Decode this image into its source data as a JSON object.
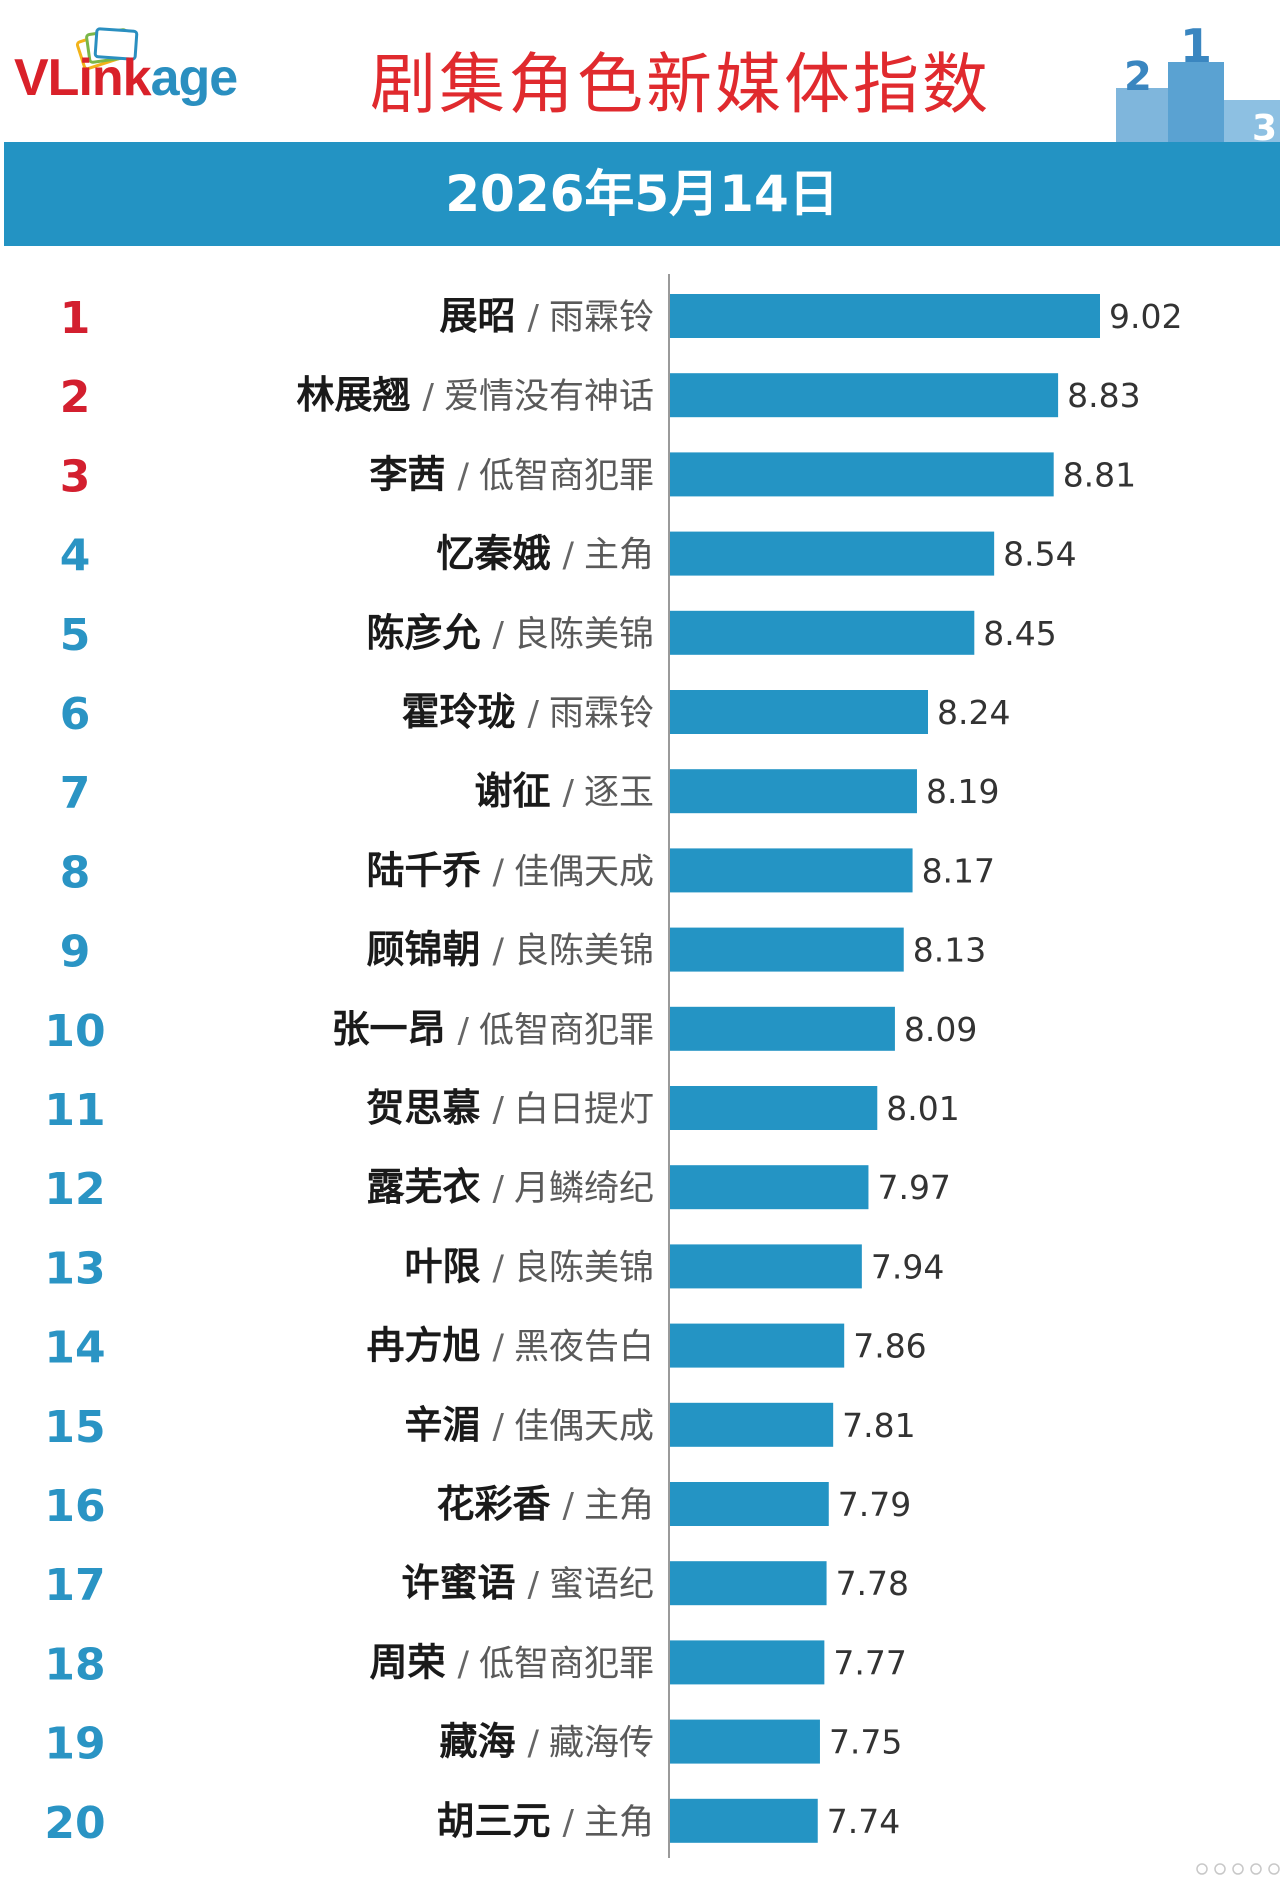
{
  "header": {
    "logo_part_a": "VLink",
    "logo_part_b": "age",
    "title": "剧集角色新媒体指数",
    "podium_digits": [
      "2",
      "1",
      "3"
    ]
  },
  "date": "2026年5月14日",
  "colors": {
    "accent_blue": "#2393c3",
    "title_red": "#e02a2e",
    "top_rank_red": "#d31f2f",
    "rank_blue": "#2a94c4"
  },
  "chart_data": {
    "type": "bar",
    "orientation": "horizontal",
    "title": "剧集角色新媒体指数",
    "date": "2026年5月14日",
    "separator": "/",
    "xlim": [
      7.07,
      9.5
    ],
    "grid": false,
    "legend": "none",
    "rows": [
      {
        "rank": "1",
        "role": "展昭",
        "drama": "雨霖铃",
        "value": 9.02,
        "label": "9.02"
      },
      {
        "rank": "2",
        "role": "林展翘",
        "drama": "爱情没有神话",
        "value": 8.83,
        "label": "8.83"
      },
      {
        "rank": "3",
        "role": "李茜",
        "drama": "低智商犯罪",
        "value": 8.81,
        "label": "8.81"
      },
      {
        "rank": "4",
        "role": "忆秦娥",
        "drama": "主角",
        "value": 8.54,
        "label": "8.54"
      },
      {
        "rank": "5",
        "role": "陈彦允",
        "drama": "良陈美锦",
        "value": 8.45,
        "label": "8.45"
      },
      {
        "rank": "6",
        "role": "霍玲珑",
        "drama": "雨霖铃",
        "value": 8.24,
        "label": "8.24"
      },
      {
        "rank": "7",
        "role": "谢征",
        "drama": "逐玉",
        "value": 8.19,
        "label": "8.19"
      },
      {
        "rank": "8",
        "role": "陆千乔",
        "drama": "佳偶天成",
        "value": 8.17,
        "label": "8.17"
      },
      {
        "rank": "9",
        "role": "顾锦朝",
        "drama": "良陈美锦",
        "value": 8.13,
        "label": "8.13"
      },
      {
        "rank": "10",
        "role": "张一昂",
        "drama": "低智商犯罪",
        "value": 8.09,
        "label": "8.09"
      },
      {
        "rank": "11",
        "role": "贺思慕",
        "drama": "白日提灯",
        "value": 8.01,
        "label": "8.01"
      },
      {
        "rank": "12",
        "role": "露芜衣",
        "drama": "月鳞绮纪",
        "value": 7.97,
        "label": "7.97"
      },
      {
        "rank": "13",
        "role": "叶限",
        "drama": "良陈美锦",
        "value": 7.94,
        "label": "7.94"
      },
      {
        "rank": "14",
        "role": "冉方旭",
        "drama": "黑夜告白",
        "value": 7.86,
        "label": "7.86"
      },
      {
        "rank": "15",
        "role": "辛湄",
        "drama": "佳偶天成",
        "value": 7.81,
        "label": "7.81"
      },
      {
        "rank": "16",
        "role": "花彩香",
        "drama": "主角",
        "value": 7.79,
        "label": "7.79"
      },
      {
        "rank": "17",
        "role": "许蜜语",
        "drama": "蜜语纪",
        "value": 7.78,
        "label": "7.78"
      },
      {
        "rank": "18",
        "role": "周荣",
        "drama": "低智商犯罪",
        "value": 7.77,
        "label": "7.77"
      },
      {
        "rank": "19",
        "role": "藏海",
        "drama": "藏海传",
        "value": 7.75,
        "label": "7.75"
      },
      {
        "rank": "20",
        "role": "胡三元",
        "drama": "主角",
        "value": 7.74,
        "label": "7.74"
      }
    ]
  }
}
